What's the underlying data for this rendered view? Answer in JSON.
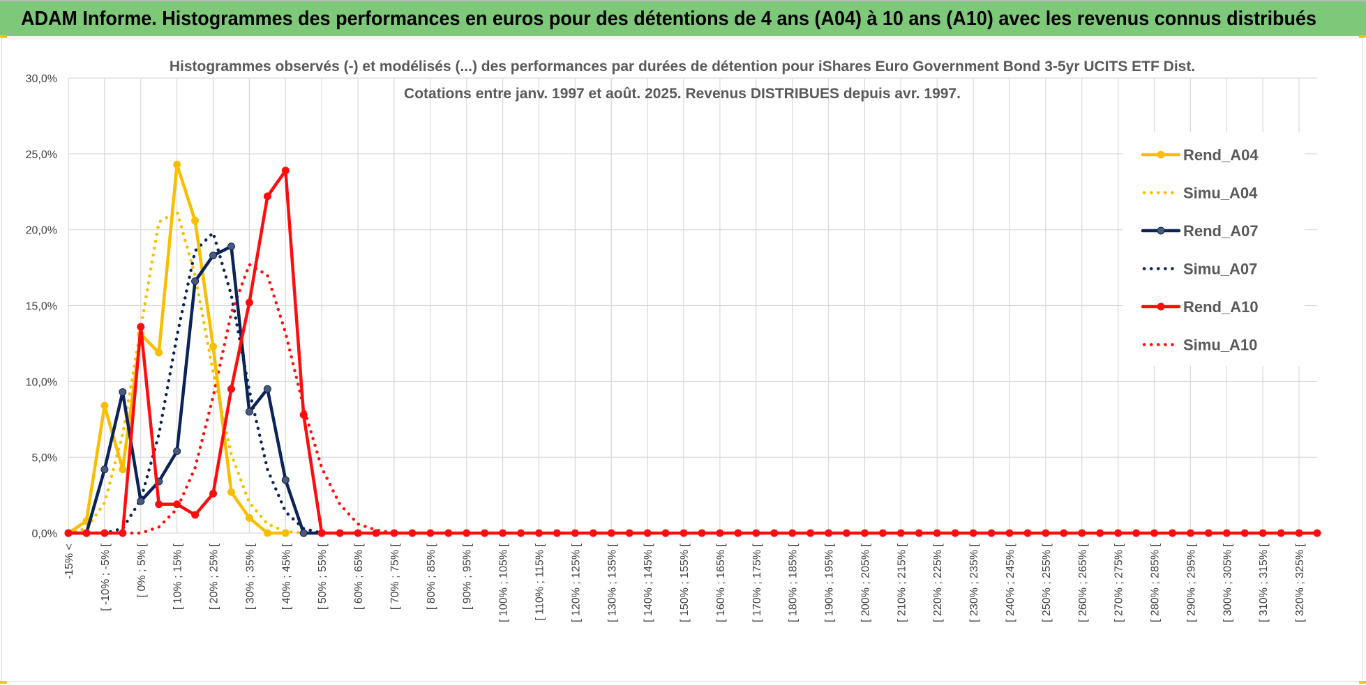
{
  "banner": {
    "title": "ADAM Informe. Histogrammes des performances en euros pour des détentions de 4 ans (A04) à 10 ans (A10) avec les revenus connus distribués"
  },
  "colors": {
    "banner_bg": "#7ec87a",
    "A04": "#f9be00",
    "A07": "#0b2357",
    "A10": "#ff0d0d",
    "grid": "#d9d9d9",
    "axis_text": "#404040",
    "title_text": "#595959"
  },
  "chart_data": {
    "type": "line",
    "title": "Histogrammes observés (-) et modélisés (...) des performances par durées de détention pour iShares Euro Government Bond 3-5yr UCITS ETF Dist.",
    "subtitle": "Cotations entre janv. 1997 et août. 2025. Revenus DISTRIBUES depuis avr. 1997.",
    "xlabel": "",
    "ylabel": "",
    "ylim": [
      0,
      30
    ],
    "y_ticks": [
      "0,0%",
      "5,0%",
      "10,0%",
      "15,0%",
      "20,0%",
      "25,0%",
      "30,0%"
    ],
    "grid": true,
    "legend_position": "right",
    "categories": [
      "-15% <",
      "[ -15% ; -10% [",
      "[ -10% ; -5% [",
      "[ -5% ; 0% [",
      "[ 0% ; 5% [",
      "[ 5% ; 10% [",
      "[ 10% ; 15% [",
      "[ 15% ; 20% [",
      "[ 20% ; 25% [",
      "[ 25% ; 30% [",
      "[ 30% ; 35% [",
      "[ 35% ; 40% [",
      "[ 40% ; 45% [",
      "[ 45% ; 50% [",
      "[ 50% ; 55% [",
      "[ 55% ; 60% [",
      "[ 60% ; 65% [",
      "[ 65% ; 70% [",
      "[ 70% ; 75% [",
      "[ 75% ; 80% [",
      "[ 80% ; 85% [",
      "[ 85% ; 90% [",
      "[ 90% ; 95% [",
      "[ 95% ; 100% [",
      "[ 100% ; 105% [",
      "[ 105% ; 110% [",
      "[ 110% ; 115% [",
      "[ 115% ; 120% [",
      "[ 120% ; 125% [",
      "[ 125% ; 130% [",
      "[ 130% ; 135% [",
      "[ 135% ; 140% [",
      "[ 140% ; 145% [",
      "[ 145% ; 150% [",
      "[ 150% ; 155% [",
      "[ 155% ; 160% [",
      "[ 160% ; 165% [",
      "[ 165% ; 170% [",
      "[ 170% ; 175% [",
      "[ 175% ; 180% [",
      "[ 180% ; 185% [",
      "[ 185% ; 190% [",
      "[ 190% ; 195% [",
      "[ 195% ; 200% [",
      "[ 200% ; 205% [",
      "[ 205% ; 210% [",
      "[ 210% ; 215% [",
      "[ 215% ; 220% [",
      "[ 220% ; 225% [",
      "[ 225% ; 230% [",
      "[ 230% ; 235% [",
      "[ 235% ; 240% [",
      "[ 240% ; 245% [",
      "[ 245% ; 250% [",
      "[ 250% ; 255% [",
      "[ 255% ; 260% [",
      "[ 260% ; 265% [",
      "[ 265% ; 270% [",
      "[ 270% ; 275% [",
      "[ 275% ; 280% [",
      "[ 280% ; 285% [",
      "[ 285% ; 290% [",
      "[ 290% ; 295% [",
      "[ 295% ; 300% [",
      "[ 300% ; 305% [",
      "[ 305% ; 310% [",
      "[ 310% ; 315% [",
      "[ 315% ; 320% [",
      "[ 320% ; 325% [",
      "[ 325% ; 330% ["
    ],
    "x_tick_labels": [
      "-15% <",
      "[ -10% ; -5% [",
      "[ 0% ; 5% [",
      "[ 10% ; 15% [",
      "[ 20% ; 25% [",
      "[ 30% ; 35% [",
      "[ 40% ; 45% [",
      "[ 50% ; 55% [",
      "[ 60% ; 65% [",
      "[ 70% ; 75% [",
      "[ 80% ; 85% [",
      "[ 90% ; 95% [",
      "[ 100% ; 105% [",
      "[ 110% ; 115% [",
      "[ 120% ; 125% [",
      "[ 130% ; 135% [",
      "[ 140% ; 145% [",
      "[ 150% ; 155% [",
      "[ 160% ; 165% [",
      "[ 170% ; 175% [",
      "[ 180% ; 185% [",
      "[ 190% ; 195% [",
      "[ 200% ; 205% [",
      "[ 210% ; 215% [",
      "[ 220% ; 225% [",
      "[ 230% ; 235% [",
      "[ 240% ; 245% [",
      "[ 250% ; 255% [",
      "[ 260% ; 265% [",
      "[ 270% ; 275% [",
      "[ 280% ; 285% [",
      "[ 290% ; 295% [",
      "[ 300% ; 305% [",
      "[ 310% ; 315% [",
      "[ 320% ; 325% ["
    ],
    "series": [
      {
        "name": "Rend_A04",
        "style": "solid",
        "markers": true,
        "color": "#f9be00",
        "values": [
          0,
          0.8,
          8.4,
          4.2,
          13.1,
          11.9,
          24.3,
          20.6,
          12.3,
          2.7,
          1.0,
          0,
          0,
          null,
          null,
          null,
          null,
          null,
          null,
          null,
          null,
          null,
          null,
          null,
          null,
          null,
          null,
          null,
          null,
          null,
          null,
          null,
          null,
          null,
          null,
          null,
          null,
          null,
          null,
          null,
          null,
          null,
          null,
          null,
          null,
          null,
          null,
          null,
          null,
          null,
          null,
          null,
          null,
          null,
          null,
          null,
          null,
          null,
          null,
          null,
          null,
          null,
          null,
          null,
          null,
          null,
          null,
          null,
          null,
          null
        ]
      },
      {
        "name": "Simu_A04",
        "style": "dotted",
        "markers": false,
        "color": "#f9be00",
        "values": [
          0,
          0.3,
          2.0,
          6.5,
          13.5,
          20.5,
          21.2,
          17.0,
          10.6,
          5.2,
          2.0,
          0.6,
          0.1,
          0,
          0,
          null,
          null,
          null,
          null,
          null,
          null,
          null,
          null,
          null,
          null,
          null,
          null,
          null,
          null,
          null,
          null,
          null,
          null,
          null,
          null,
          null,
          null,
          null,
          null,
          null,
          null,
          null,
          null,
          null,
          null,
          null,
          null,
          null,
          null,
          null,
          null,
          null,
          null,
          null,
          null,
          null,
          null,
          null,
          null,
          null,
          null,
          null,
          null,
          null,
          null,
          null,
          null,
          null,
          null,
          null
        ]
      },
      {
        "name": "Rend_A07",
        "style": "solid",
        "markers": true,
        "color": "#0b2357",
        "values": [
          0,
          0,
          4.2,
          9.3,
          2.1,
          3.4,
          5.4,
          16.6,
          18.3,
          18.9,
          8.0,
          9.5,
          3.5,
          0,
          0,
          null,
          null,
          null,
          null,
          null,
          null,
          null,
          null,
          null,
          null,
          null,
          null,
          null,
          null,
          null,
          null,
          null,
          null,
          null,
          null,
          null,
          null,
          null,
          null,
          null,
          null,
          null,
          null,
          null,
          null,
          null,
          null,
          null,
          null,
          null,
          null,
          null,
          null,
          null,
          null,
          null,
          null,
          null,
          null,
          null,
          null,
          null,
          null,
          null,
          null,
          null,
          null,
          null,
          null,
          null
        ]
      },
      {
        "name": "Simu_A07",
        "style": "dotted",
        "markers": false,
        "color": "#0b2357",
        "values": [
          0,
          0,
          0,
          0.3,
          2.2,
          6.5,
          13.0,
          18.6,
          19.8,
          15.7,
          9.4,
          4.2,
          1.4,
          0.3,
          0,
          0,
          0,
          null,
          null,
          null,
          null,
          null,
          null,
          null,
          null,
          null,
          null,
          null,
          null,
          null,
          null,
          null,
          null,
          null,
          null,
          null,
          null,
          null,
          null,
          null,
          null,
          null,
          null,
          null,
          null,
          null,
          null,
          null,
          null,
          null,
          null,
          null,
          null,
          null,
          null,
          null,
          null,
          null,
          null,
          null,
          null,
          null,
          null,
          null,
          null,
          null,
          null,
          null,
          null,
          null
        ]
      },
      {
        "name": "Rend_A10",
        "style": "solid",
        "markers": true,
        "color": "#ff0d0d",
        "values": [
          0,
          0,
          0,
          0,
          13.6,
          1.9,
          1.9,
          1.2,
          2.6,
          9.5,
          15.2,
          22.2,
          23.9,
          7.8,
          0,
          0,
          0,
          0,
          0,
          0,
          0,
          0,
          0,
          0,
          0,
          0,
          0,
          0,
          0,
          0,
          0,
          0,
          0,
          0,
          0,
          0,
          0,
          0,
          0,
          0,
          0,
          0,
          0,
          0,
          0,
          0,
          0,
          0,
          0,
          0,
          0,
          0,
          0,
          0,
          0,
          0,
          0,
          0,
          0,
          0,
          0,
          0,
          0,
          0,
          0,
          0,
          0,
          0,
          0,
          0
        ]
      },
      {
        "name": "Simu_A10",
        "style": "dotted",
        "markers": false,
        "color": "#ff0d0d",
        "values": [
          0,
          0,
          0,
          0,
          0,
          0.4,
          1.6,
          4.3,
          9.0,
          14.5,
          17.7,
          17.0,
          13.2,
          8.3,
          4.3,
          1.9,
          0.6,
          0.2,
          0,
          0,
          0,
          null,
          null,
          null,
          null,
          null,
          null,
          null,
          null,
          null,
          null,
          null,
          null,
          null,
          null,
          null,
          null,
          null,
          null,
          null,
          null,
          null,
          null,
          null,
          null,
          null,
          null,
          null,
          null,
          null,
          null,
          null,
          null,
          null,
          null,
          null,
          null,
          null,
          null,
          null,
          null,
          null,
          null,
          null,
          null,
          null,
          null,
          null,
          null,
          null
        ]
      }
    ]
  }
}
